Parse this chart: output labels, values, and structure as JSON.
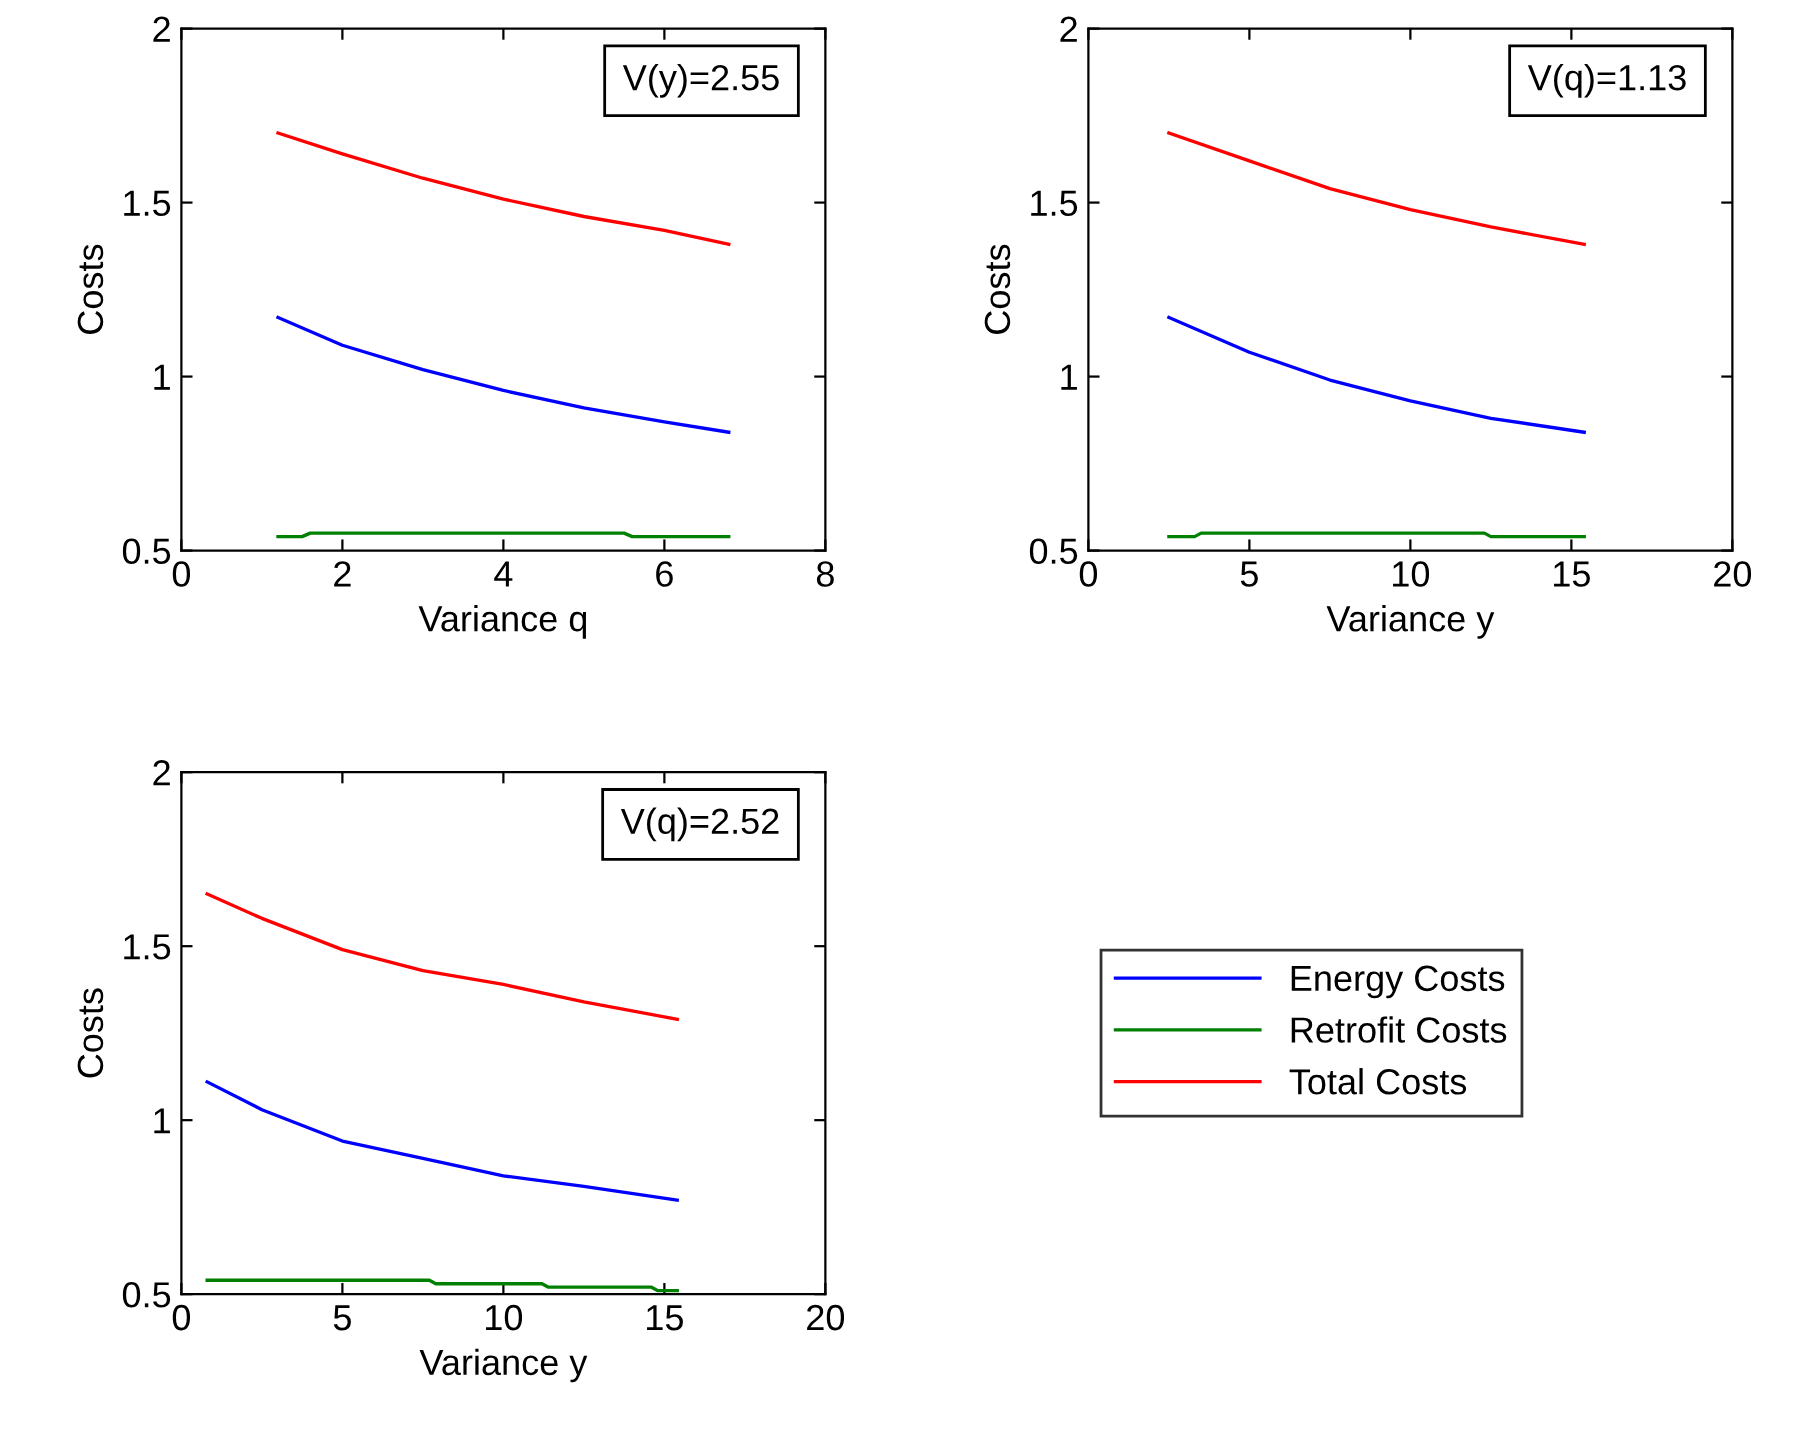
{
  "chart_data": [
    {
      "type": "line",
      "xlabel": "Variance q",
      "ylabel": "Costs",
      "xlim": [
        0,
        8
      ],
      "ylim": [
        0.5,
        2
      ],
      "xticks": [
        0,
        2,
        4,
        6,
        8
      ],
      "yticks": [
        0.5,
        1,
        1.5,
        2
      ],
      "annotations": [
        "V(y)=2.55"
      ],
      "grid": false,
      "legend": false,
      "series": [
        {
          "color": "#0000ff",
          "x": [
            1.2,
            2,
            3,
            4,
            5,
            6,
            6.8
          ],
          "values": [
            1.17,
            1.09,
            1.02,
            0.96,
            0.91,
            0.87,
            0.84
          ]
        },
        {
          "color": "#008000",
          "x": [
            1.2,
            1.5,
            1.6,
            5.5,
            5.6,
            6.8
          ],
          "values": [
            0.54,
            0.54,
            0.55,
            0.55,
            0.54,
            0.54
          ]
        },
        {
          "color": "#ff0000",
          "x": [
            1.2,
            2,
            3,
            4,
            5,
            6,
            6.8
          ],
          "values": [
            1.7,
            1.64,
            1.57,
            1.51,
            1.46,
            1.42,
            1.38
          ]
        }
      ]
    },
    {
      "type": "line",
      "xlabel": "Variance y",
      "ylabel": "Costs",
      "xlim": [
        0,
        20
      ],
      "ylim": [
        0.5,
        2
      ],
      "xticks": [
        0,
        5,
        10,
        15,
        20
      ],
      "yticks": [
        0.5,
        1,
        1.5,
        2
      ],
      "annotations": [
        "V(q)=1.13"
      ],
      "grid": false,
      "legend": false,
      "series": [
        {
          "color": "#0000ff",
          "x": [
            2.5,
            5,
            7.5,
            10,
            12.5,
            15.4
          ],
          "values": [
            1.17,
            1.07,
            0.99,
            0.93,
            0.88,
            0.84
          ]
        },
        {
          "color": "#008000",
          "x": [
            2.5,
            3.3,
            3.5,
            12.3,
            12.5,
            15.4
          ],
          "values": [
            0.54,
            0.54,
            0.55,
            0.55,
            0.54,
            0.54
          ]
        },
        {
          "color": "#ff0000",
          "x": [
            2.5,
            5,
            7.5,
            10,
            12.5,
            15.4
          ],
          "values": [
            1.7,
            1.62,
            1.54,
            1.48,
            1.43,
            1.38
          ]
        }
      ]
    },
    {
      "type": "line",
      "xlabel": "Variance y",
      "ylabel": "Costs",
      "xlim": [
        0,
        20
      ],
      "ylim": [
        0.5,
        2
      ],
      "xticks": [
        0,
        5,
        10,
        15,
        20
      ],
      "yticks": [
        0.5,
        1,
        1.5,
        2
      ],
      "annotations": [
        "V(q)=2.52"
      ],
      "grid": false,
      "legend": "right",
      "series": [
        {
          "name": "Energy Costs",
          "color": "#0000ff",
          "x": [
            0.8,
            2.5,
            5,
            7.5,
            10,
            12.5,
            15.4
          ],
          "values": [
            1.11,
            1.03,
            0.94,
            0.89,
            0.84,
            0.81,
            0.77
          ]
        },
        {
          "name": "Retrofit Costs",
          "color": "#008000",
          "x": [
            0.8,
            7.7,
            7.9,
            11.2,
            11.4,
            14.6,
            14.8,
            15.4
          ],
          "values": [
            0.54,
            0.54,
            0.53,
            0.53,
            0.52,
            0.52,
            0.51,
            0.51
          ]
        },
        {
          "name": "Total Costs",
          "color": "#ff0000",
          "x": [
            0.8,
            2.5,
            5,
            7.5,
            10,
            12.5,
            15.4
          ],
          "values": [
            1.65,
            1.58,
            1.49,
            1.43,
            1.39,
            1.34,
            1.29
          ]
        }
      ]
    }
  ]
}
